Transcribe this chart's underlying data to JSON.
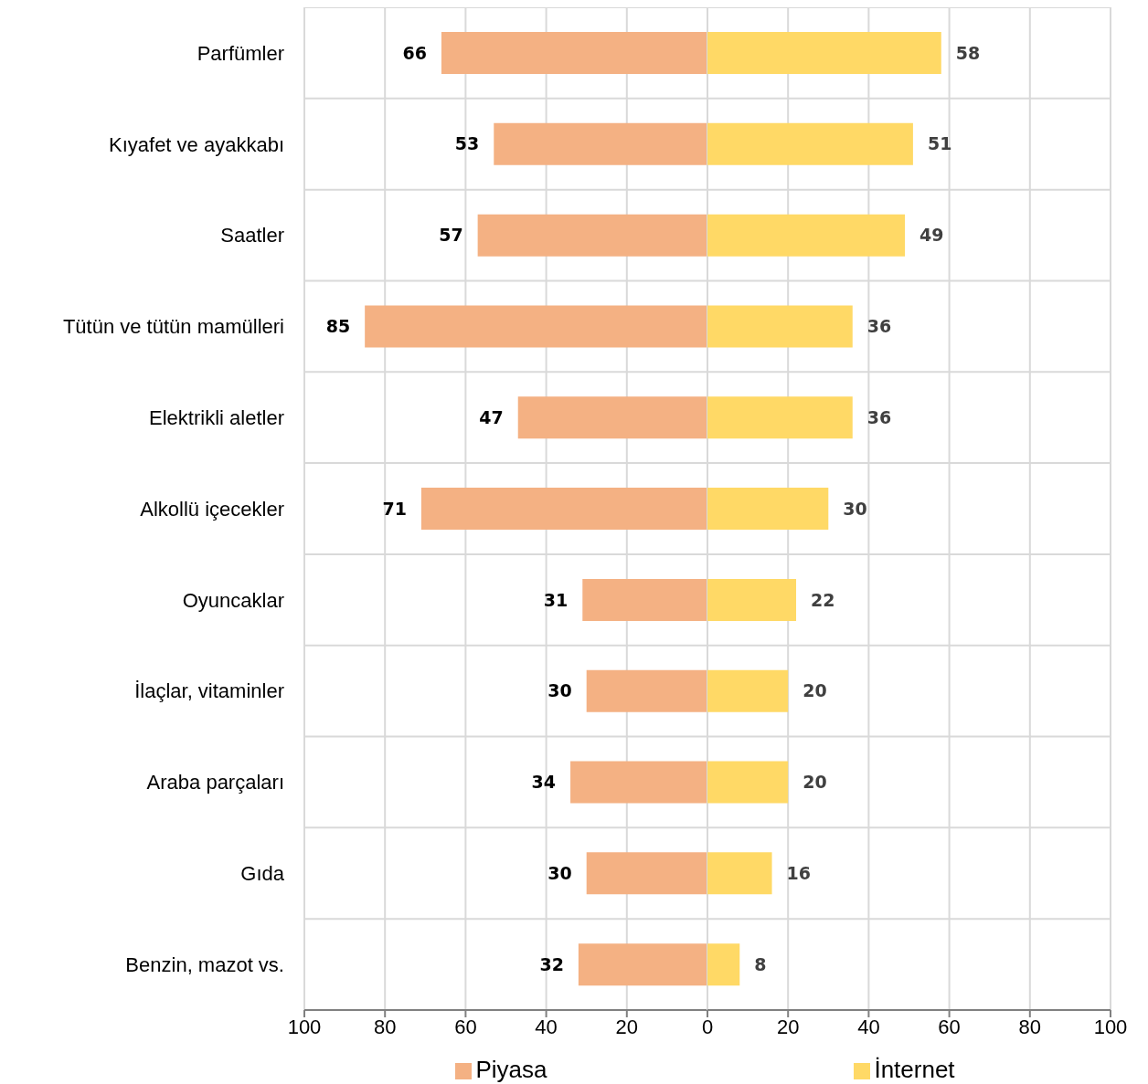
{
  "chart_data": [
    {
      "type": "bar",
      "orientation": "horizontal",
      "categories": [
        "Parfümler",
        "Kıyafet ve ayakkabı",
        "Saatler",
        "Tütün ve tütün mamülleri",
        "Elektrikli aletler",
        "Alkollü içecekler",
        "Oyuncaklar",
        "İlaçlar, vitaminler",
        "Araba parçaları",
        "Gıda",
        "Benzin, mazot vs."
      ],
      "series": [
        {
          "name": "Piyasa",
          "color": "#f4b183",
          "values": [
            66,
            53,
            57,
            85,
            47,
            71,
            31,
            30,
            34,
            30,
            32
          ]
        }
      ],
      "data_labels": true,
      "xlim": [
        100,
        0
      ],
      "xticks": [
        100,
        80,
        60,
        40,
        20,
        {
          "value": 0,
          "label": null
        }
      ],
      "grid": true,
      "legend": "bottom"
    },
    {
      "type": "bar",
      "orientation": "horizontal",
      "series": [
        {
          "name": "İnternet",
          "color": "#ffd966",
          "values": [
            58,
            51,
            49,
            36,
            36,
            30,
            22,
            20,
            20,
            16,
            8
          ]
        }
      ],
      "data_labels": true,
      "xlim": [
        0,
        100
      ],
      "xticks": [
        0,
        20,
        40,
        60,
        80,
        100
      ],
      "tick_labels": "x",
      "grid": true,
      "legend": "bottom"
    }
  ]
}
